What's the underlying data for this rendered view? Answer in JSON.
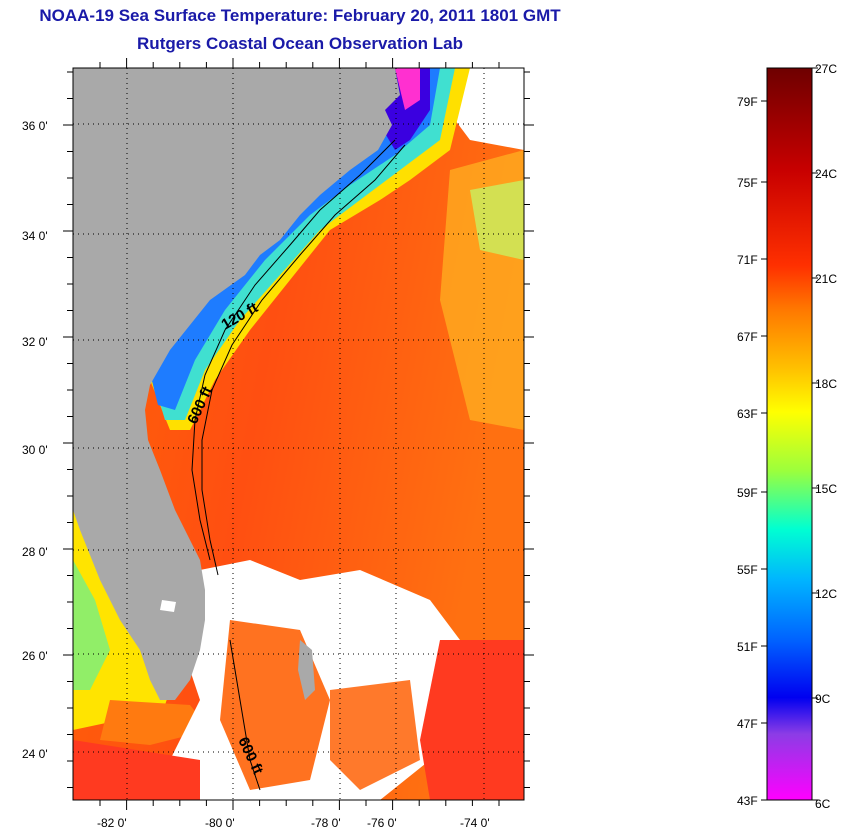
{
  "map": {
    "title": "NOAA-19 Sea Surface Temperature:  February 20, 2011 1801 GMT",
    "subtitle": "Rutgers Coastal Ocean Observation Lab",
    "lat_labels": [
      "36 0'",
      "34 0'",
      "32 0'",
      "30 0'",
      "28 0'",
      "26 0'",
      "24 0'"
    ],
    "lon_labels": [
      "-82 0'",
      "-80 0'",
      "-78 0'",
      "-76 0'",
      "-74 0'"
    ],
    "contour_labels": [
      "120 ft",
      "600 ft",
      "600 ft"
    ]
  },
  "colorbar": {
    "celsius_labels": [
      "27C",
      "24C",
      "21C",
      "18C",
      "15C",
      "12C",
      "9C",
      "6C"
    ],
    "fahrenheit_labels": [
      "79F",
      "75F",
      "71F",
      "67F",
      "63F",
      "59F",
      "55F",
      "51F",
      "47F",
      "43F"
    ],
    "colors": [
      "#7a0000",
      "#c80000",
      "#ff2800",
      "#ff7800",
      "#ffc400",
      "#ffff00",
      "#a0ff40",
      "#00ffd0",
      "#00aaff",
      "#0050ff",
      "#0000ff",
      "#8a2be2",
      "#ff00ff"
    ]
  },
  "colors": {
    "land": "#a9a9a9",
    "title": "#1a1aa8"
  }
}
